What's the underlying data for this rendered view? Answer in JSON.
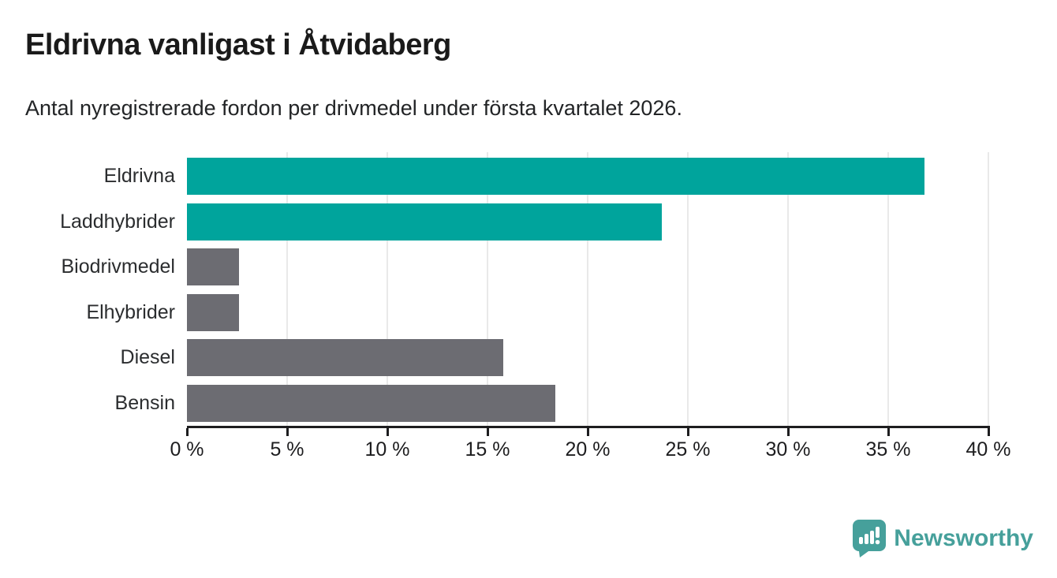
{
  "title": "Eldrivna vanligast i Åtvidaberg",
  "subtitle": "Antal nyregistrerade fordon per drivmedel under första kvartalet 2026.",
  "colors": {
    "teal": "#00a49c",
    "gray": "#6c6c72",
    "axis": "#1d1d1f",
    "gridline": "#e9e9e9",
    "logo": "#46a09b"
  },
  "chart_data": {
    "type": "bar",
    "orientation": "horizontal",
    "title": "Eldrivna vanligast i Åtvidaberg",
    "subtitle": "Antal nyregistrerade fordon per drivmedel under första kvartalet 2026.",
    "categories": [
      "Eldrivna",
      "Laddhybrider",
      "Biodrivmedel",
      "Elhybrider",
      "Diesel",
      "Bensin"
    ],
    "values": [
      36.8,
      23.7,
      2.6,
      2.6,
      15.8,
      18.4
    ],
    "unit": "%",
    "bar_colors": [
      "#00a49c",
      "#00a49c",
      "#6c6c72",
      "#6c6c72",
      "#6c6c72",
      "#6c6c72"
    ],
    "xlim": [
      0,
      40
    ],
    "x_ticks": [
      0,
      5,
      10,
      15,
      20,
      25,
      30,
      35,
      40
    ],
    "x_tick_labels": [
      "0 %",
      "5 %",
      "10 %",
      "15 %",
      "20 %",
      "25 %",
      "30 %",
      "35 %",
      "40 %"
    ],
    "grid": "vertical-gridlines-on",
    "legend": "none"
  },
  "footer": {
    "brand": "Newsworthy",
    "logo_icon": "newsworthy-speech-bubble-barchart-icon"
  }
}
